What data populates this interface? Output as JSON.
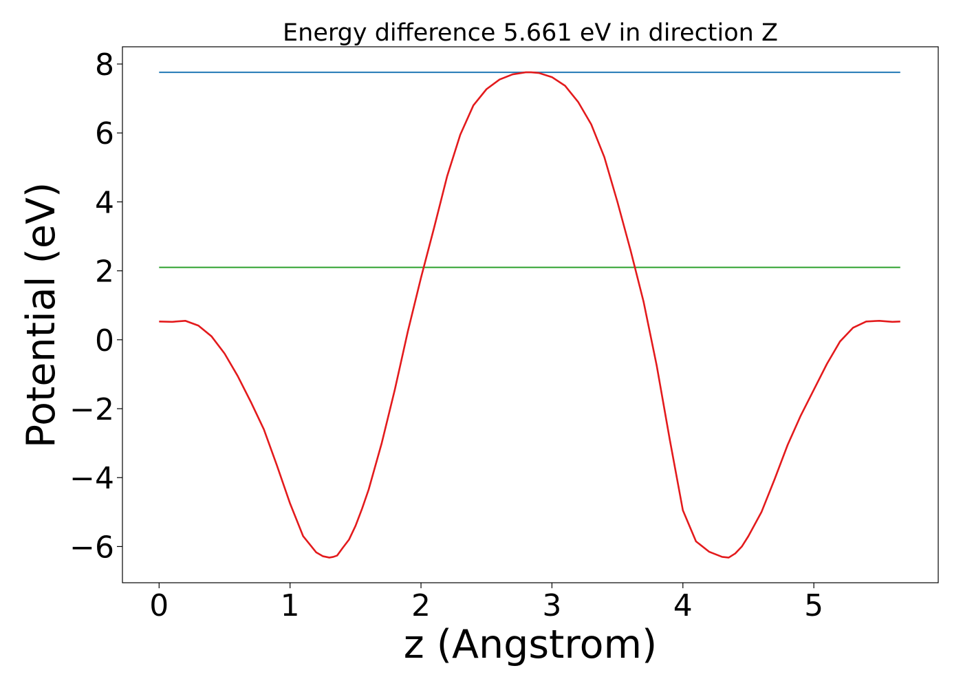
{
  "chart_data": {
    "type": "line",
    "title": "Energy difference 5.661 eV in direction Z",
    "xlabel": "z (Angstrom)",
    "ylabel": "Potential (eV)",
    "xlim": [
      -0.28,
      5.95
    ],
    "ylim": [
      -7.05,
      8.5
    ],
    "xticks": [
      0,
      1,
      2,
      3,
      4,
      5
    ],
    "xtick_labels": [
      "0",
      "1",
      "2",
      "3",
      "4",
      "5"
    ],
    "yticks": [
      -6,
      -4,
      -2,
      0,
      2,
      4,
      6,
      8
    ],
    "ytick_labels": [
      "−6",
      "−4",
      "−2",
      "0",
      "2",
      "4",
      "6",
      "8"
    ],
    "grid": false,
    "series": [
      {
        "color": "#1f77b4",
        "x": [
          0,
          5.66
        ],
        "y": [
          7.76,
          7.76
        ]
      },
      {
        "color": "#2ca02c",
        "x": [
          0,
          5.66
        ],
        "y": [
          2.1,
          2.1
        ]
      },
      {
        "color": "#e31a1c",
        "x": [
          0,
          0.1,
          0.2,
          0.3,
          0.4,
          0.5,
          0.6,
          0.7,
          0.8,
          0.9,
          1.0,
          1.1,
          1.2,
          1.25,
          1.3,
          1.33,
          1.36,
          1.4,
          1.45,
          1.5,
          1.55,
          1.6,
          1.7,
          1.8,
          1.9,
          2.0,
          2.1,
          2.2,
          2.3,
          2.4,
          2.5,
          2.6,
          2.7,
          2.8,
          2.84,
          2.9,
          3.0,
          3.1,
          3.2,
          3.3,
          3.4,
          3.5,
          3.6,
          3.7,
          3.8,
          3.9,
          4.0,
          4.1,
          4.2,
          4.3,
          4.35,
          4.4,
          4.45,
          4.5,
          4.6,
          4.7,
          4.8,
          4.9,
          5.0,
          5.1,
          5.2,
          5.3,
          5.4,
          5.5,
          5.6,
          5.66
        ],
        "y": [
          0.53,
          0.52,
          0.55,
          0.41,
          0.1,
          -0.4,
          -1.05,
          -1.8,
          -2.6,
          -3.65,
          -4.75,
          -5.7,
          -6.17,
          -6.28,
          -6.32,
          -6.3,
          -6.26,
          -6.05,
          -5.8,
          -5.4,
          -4.9,
          -4.35,
          -3.0,
          -1.45,
          0.25,
          1.8,
          3.25,
          4.75,
          5.95,
          6.8,
          7.27,
          7.55,
          7.7,
          7.76,
          7.76,
          7.74,
          7.62,
          7.37,
          6.9,
          6.25,
          5.3,
          4.0,
          2.6,
          1.1,
          -0.75,
          -2.9,
          -4.95,
          -5.85,
          -6.15,
          -6.3,
          -6.32,
          -6.2,
          -6.0,
          -5.7,
          -5.0,
          -4.05,
          -3.05,
          -2.2,
          -1.45,
          -0.7,
          -0.05,
          0.35,
          0.53,
          0.55,
          0.52,
          0.53
        ]
      }
    ]
  }
}
